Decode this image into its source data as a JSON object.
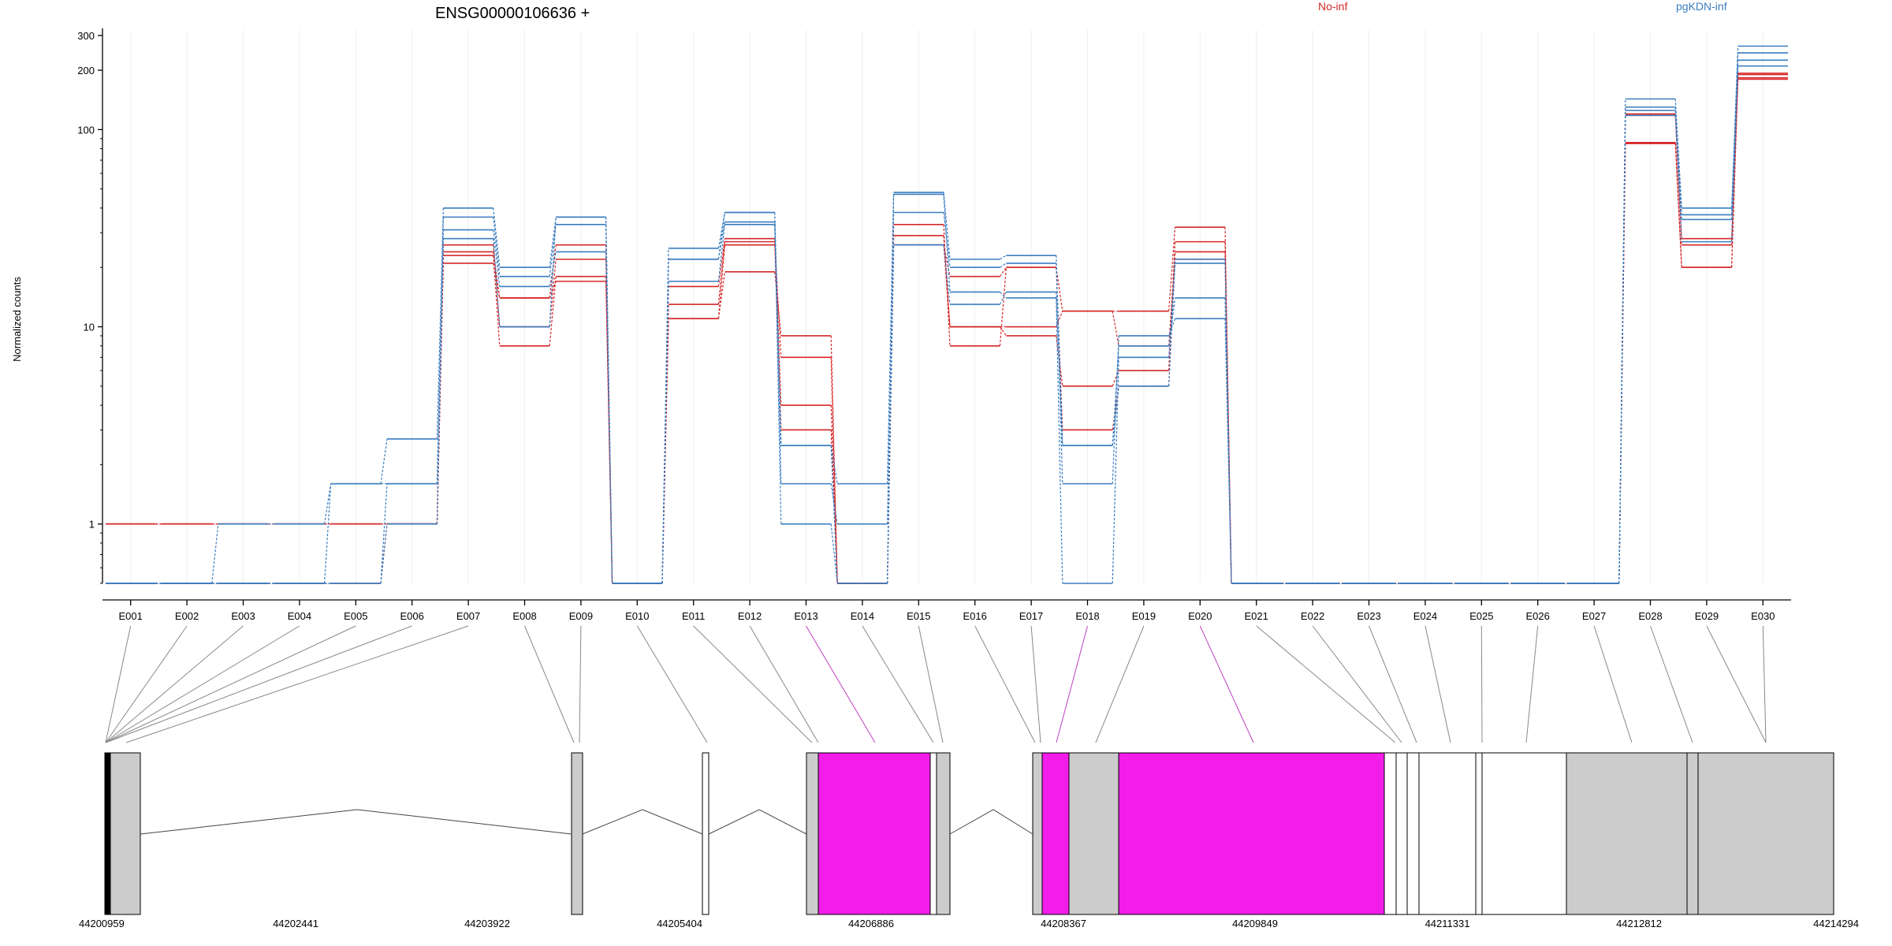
{
  "chart_data": {
    "type": "line",
    "title": "ENSG00000106636 +",
    "ylabel": "Normalized counts",
    "y_scale": "log",
    "ylim": [
      0.5,
      320
    ],
    "y_ticks": [
      "1",
      "10",
      "100",
      "200",
      "300"
    ],
    "categories": [
      "E001",
      "E002",
      "E003",
      "E004",
      "E005",
      "E006",
      "E007",
      "E008",
      "E009",
      "E010",
      "E011",
      "E012",
      "E013",
      "E014",
      "E015",
      "E016",
      "E017",
      "E018",
      "E019",
      "E020",
      "E021",
      "E022",
      "E023",
      "E024",
      "E025",
      "E026",
      "E027",
      "E028",
      "E029",
      "E030"
    ],
    "legend": [
      {
        "label": "No-inf",
        "color": "#d62728"
      },
      {
        "label": "pgKDN-inf",
        "color": "#3a7dc0"
      }
    ],
    "grid": "vertical",
    "series": [
      {
        "group": "No-inf",
        "color": "#d62728",
        "values": [
          1,
          1,
          1,
          1,
          1,
          1,
          21,
          14,
          17,
          0.5,
          11,
          19,
          9,
          0.5,
          26,
          18,
          20,
          12,
          12,
          32,
          0.5,
          0.5,
          0.5,
          0.5,
          0.5,
          0.5,
          0.5,
          118,
          26,
          183
        ]
      },
      {
        "group": "No-inf",
        "color": "#d62728",
        "values": [
          1,
          1,
          1,
          1,
          1,
          1,
          23,
          8,
          18,
          0.5,
          13,
          27,
          7,
          0.5,
          29,
          10,
          9,
          5,
          6,
          27,
          0.5,
          0.5,
          0.5,
          0.5,
          0.5,
          0.5,
          0.5,
          86,
          20,
          180
        ]
      },
      {
        "group": "No-inf",
        "color": "#d62728",
        "values": [
          1,
          1,
          1,
          1,
          1,
          1,
          26,
          10,
          22,
          0.5,
          16,
          28,
          4,
          0.5,
          33,
          8,
          20,
          3,
          5,
          22,
          0.5,
          0.5,
          0.5,
          0.5,
          0.5,
          0.5,
          0.5,
          120,
          28,
          190
        ]
      },
      {
        "group": "No-inf",
        "color": "#d62728",
        "values": [
          0.5,
          0.5,
          0.5,
          0.5,
          0.5,
          1,
          24,
          14,
          26,
          0.5,
          11,
          26,
          3,
          0.5,
          26,
          10,
          10,
          12,
          8,
          24,
          0.5,
          0.5,
          0.5,
          0.5,
          0.5,
          0.5,
          0.5,
          85,
          20,
          193
        ]
      },
      {
        "group": "pgKDN-inf",
        "color": "#3a7dc0",
        "values": [
          0.5,
          0.5,
          1,
          1,
          1.6,
          2.7,
          40,
          20,
          36,
          0.5,
          25,
          38,
          2.5,
          1.6,
          48,
          22,
          23,
          1.6,
          9,
          11,
          0.5,
          0.5,
          0.5,
          0.5,
          0.5,
          0.5,
          0.5,
          143,
          40,
          265
        ]
      },
      {
        "group": "pgKDN-inf",
        "color": "#3a7dc0",
        "values": [
          0.5,
          0.5,
          0.5,
          0.5,
          1.6,
          1.6,
          36,
          18,
          33,
          0.5,
          22,
          38,
          1.6,
          1,
          38,
          20,
          21,
          2.5,
          8,
          14,
          0.5,
          0.5,
          0.5,
          0.5,
          0.5,
          0.5,
          0.5,
          130,
          37,
          245
        ]
      },
      {
        "group": "pgKDN-inf",
        "color": "#3a7dc0",
        "values": [
          0.5,
          0.5,
          0.5,
          0.5,
          0.5,
          1.6,
          31,
          16,
          24,
          0.5,
          22,
          34,
          1,
          0.5,
          47,
          15,
          14,
          0.5,
          7,
          21,
          0.5,
          0.5,
          0.5,
          0.5,
          0.5,
          0.5,
          0.5,
          125,
          35,
          225
        ]
      },
      {
        "group": "pgKDN-inf",
        "color": "#3a7dc0",
        "values": [
          0.5,
          0.5,
          0.5,
          0.5,
          0.5,
          1,
          28,
          10,
          36,
          0.5,
          17,
          33,
          2.5,
          0.5,
          26,
          13,
          15,
          2.5,
          5,
          22,
          0.5,
          0.5,
          0.5,
          0.5,
          0.5,
          0.5,
          0.5,
          118,
          27,
          210
        ]
      }
    ],
    "gene_model": {
      "coordinate_labels": [
        "44200959",
        "44202441",
        "44203922",
        "44205404",
        "44206886",
        "44208367",
        "44209849",
        "44211331",
        "44212812",
        "44214294"
      ],
      "highlighted_exons": [
        "E013",
        "E018",
        "E020"
      ],
      "highlight_color": "#f21de8"
    }
  }
}
